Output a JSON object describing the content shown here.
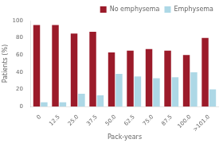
{
  "chart_data": {
    "type": "bar",
    "categories": [
      "0",
      "12.5",
      "25.0",
      "37.5",
      "50.0",
      "62.5",
      "75.0",
      "87.5",
      "100.0",
      ">101.0"
    ],
    "series": [
      {
        "name": "No emphysema",
        "color": "#9B1B2A",
        "values": [
          95,
          95,
          85,
          87,
          63,
          65,
          67,
          65,
          60,
          80
        ]
      },
      {
        "name": "Emphysema",
        "color": "#ADD8E6",
        "values": [
          5,
          5,
          15,
          13,
          38,
          35,
          33,
          34,
          40,
          20
        ]
      }
    ],
    "xlabel": "Pack-years",
    "ylabel": "Patients (%)",
    "ylim": [
      0,
      100
    ],
    "yticks": [
      0,
      20,
      40,
      60,
      80,
      100
    ],
    "grid": false,
    "legend": "upper right"
  }
}
